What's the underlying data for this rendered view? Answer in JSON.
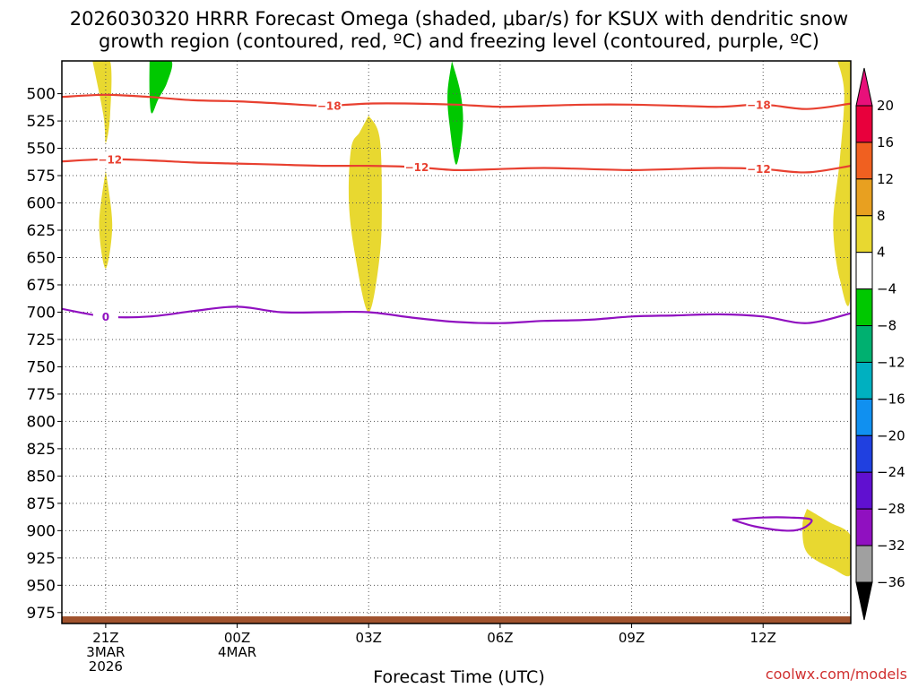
{
  "chart_data": {
    "type": "heatmap",
    "title_line1": "2026030320 HRRR Forecast Omega (shaded, μbar/s) for KSUX with dendritic snow",
    "title_line2": "growth region (contoured, red, ºC) and freezing level (contoured, purple, ºC)",
    "xlabel": "Forecast Time (UTC)",
    "credit": "coolwx.com/models",
    "x_range_hours": [
      -1,
      17
    ],
    "y_range_hpa": [
      470,
      985
    ],
    "y_ticks": [
      500,
      525,
      550,
      575,
      600,
      625,
      650,
      675,
      700,
      725,
      750,
      775,
      800,
      825,
      850,
      875,
      900,
      925,
      950,
      975
    ],
    "x_ticks": [
      {
        "h": 0,
        "line1": "21Z",
        "line2": "3MAR",
        "line3": "2026"
      },
      {
        "h": 3,
        "line1": "00Z",
        "line2": "4MAR",
        "line3": ""
      },
      {
        "h": 6,
        "line1": "03Z",
        "line2": "",
        "line3": ""
      },
      {
        "h": 9,
        "line1": "06Z",
        "line2": "",
        "line3": ""
      },
      {
        "h": 12,
        "line1": "09Z",
        "line2": "",
        "line3": ""
      },
      {
        "h": 15,
        "line1": "12Z",
        "line2": "",
        "line3": ""
      }
    ],
    "grid": true,
    "colorbar": {
      "levels": [
        "20",
        "16",
        "12",
        "8",
        "4",
        "−4",
        "−8",
        "−12",
        "−16",
        "−20",
        "−24",
        "−28",
        "−32",
        "−36"
      ],
      "colors": [
        "#e8003c",
        "#f06020",
        "#e8a020",
        "#e8d830",
        "#ffffff",
        "#00c800",
        "#00b070",
        "#00b0c0",
        "#1090f0",
        "#2040e0",
        "#6010d0",
        "#9010c0",
        "#a0a0a0"
      ],
      "top_arrow_color": "#e8107a",
      "bottom_arrow_color": "#000000"
    },
    "contours": [
      {
        "label": "−18",
        "color": "#e84030",
        "label_h": [
          5.1,
          14.9
        ],
        "points": [
          [
            -1,
            503
          ],
          [
            0,
            501
          ],
          [
            1,
            503
          ],
          [
            2,
            506
          ],
          [
            3,
            507
          ],
          [
            4,
            509
          ],
          [
            5,
            511
          ],
          [
            6,
            509
          ],
          [
            7,
            509
          ],
          [
            8,
            510
          ],
          [
            9,
            512
          ],
          [
            10,
            511
          ],
          [
            11,
            510
          ],
          [
            12,
            510
          ],
          [
            13,
            511
          ],
          [
            14,
            512
          ],
          [
            15,
            510
          ],
          [
            16,
            514
          ],
          [
            17,
            509
          ]
        ]
      },
      {
        "label": "−12",
        "color": "#e84030",
        "label_h": [
          0.1,
          7.1,
          14.9
        ],
        "points": [
          [
            -1,
            562
          ],
          [
            0,
            560
          ],
          [
            1,
            561
          ],
          [
            2,
            563
          ],
          [
            3,
            564
          ],
          [
            4,
            565
          ],
          [
            5,
            566
          ],
          [
            6,
            566
          ],
          [
            7,
            567
          ],
          [
            8,
            570
          ],
          [
            9,
            569
          ],
          [
            10,
            568
          ],
          [
            11,
            569
          ],
          [
            12,
            570
          ],
          [
            13,
            569
          ],
          [
            14,
            568
          ],
          [
            15,
            569
          ],
          [
            16,
            572
          ],
          [
            17,
            566
          ]
        ]
      },
      {
        "label": "0",
        "color": "#9010c0",
        "label_h": [
          0
        ],
        "points": [
          [
            -1,
            697
          ],
          [
            0,
            704
          ],
          [
            1,
            704
          ],
          [
            2,
            699
          ],
          [
            3,
            695
          ],
          [
            4,
            700
          ],
          [
            5,
            700
          ],
          [
            6,
            700
          ],
          [
            7,
            705
          ],
          [
            8,
            709
          ],
          [
            9,
            710
          ],
          [
            10,
            708
          ],
          [
            11,
            707
          ],
          [
            12,
            704
          ],
          [
            13,
            703
          ],
          [
            14,
            702
          ],
          [
            15,
            704
          ],
          [
            16,
            710
          ],
          [
            17,
            701
          ]
        ]
      }
    ],
    "omega_regions": [
      {
        "value_range": "4 to 8",
        "color": "#e8d830",
        "points": [
          [
            -0.3,
            470
          ],
          [
            0.1,
            470
          ],
          [
            0.1,
            520
          ],
          [
            0,
            545
          ],
          [
            -0.05,
            520
          ]
        ]
      },
      {
        "value_range": "4 to 8",
        "color": "#e8d830",
        "points": [
          [
            0,
            570
          ],
          [
            0.15,
            620
          ],
          [
            0,
            660
          ],
          [
            -0.15,
            620
          ]
        ]
      },
      {
        "value_range": "4 to 8",
        "color": "#e8d830",
        "points": [
          [
            6,
            520
          ],
          [
            6.25,
            540
          ],
          [
            6.3,
            600
          ],
          [
            6.25,
            650
          ],
          [
            6,
            700
          ],
          [
            5.7,
            650
          ],
          [
            5.55,
            600
          ],
          [
            5.6,
            550
          ],
          [
            5.8,
            535
          ]
        ]
      },
      {
        "value_range": "4 to 8",
        "color": "#e8d830",
        "points": [
          [
            16.7,
            470
          ],
          [
            17,
            470
          ],
          [
            17,
            680
          ],
          [
            16.75,
            670
          ],
          [
            16.6,
            620
          ],
          [
            16.75,
            560
          ],
          [
            16.85,
            500
          ]
        ]
      },
      {
        "value_range": "4 to 8",
        "color": "#e8d830",
        "points": [
          [
            16.0,
            880
          ],
          [
            16.5,
            892
          ],
          [
            17,
            905
          ],
          [
            17,
            940
          ],
          [
            16.6,
            935
          ],
          [
            16.0,
            920
          ],
          [
            15.9,
            895
          ]
        ]
      },
      {
        "value_range": "-8 to -4",
        "color": "#00c800",
        "points": [
          [
            1.0,
            470
          ],
          [
            1.5,
            470
          ],
          [
            1.4,
            490
          ],
          [
            1.2,
            505
          ],
          [
            1.05,
            518
          ],
          [
            1.0,
            500
          ]
        ]
      },
      {
        "value_range": "-8 to -4",
        "color": "#00c800",
        "points": [
          [
            7.9,
            470
          ],
          [
            8.1,
            500
          ],
          [
            8.15,
            530
          ],
          [
            8.0,
            565
          ],
          [
            7.85,
            530
          ],
          [
            7.8,
            500
          ]
        ]
      }
    ],
    "freezing_loop": {
      "color": "#9010c0",
      "points": [
        [
          14.3,
          890
        ],
        [
          15.0,
          888
        ],
        [
          15.6,
          888
        ],
        [
          16.1,
          890
        ],
        [
          15.9,
          898
        ],
        [
          15.5,
          900
        ],
        [
          14.8,
          896
        ]
      ]
    },
    "terrain": {
      "color": "#a0522d",
      "top_hpa": 976
    }
  }
}
